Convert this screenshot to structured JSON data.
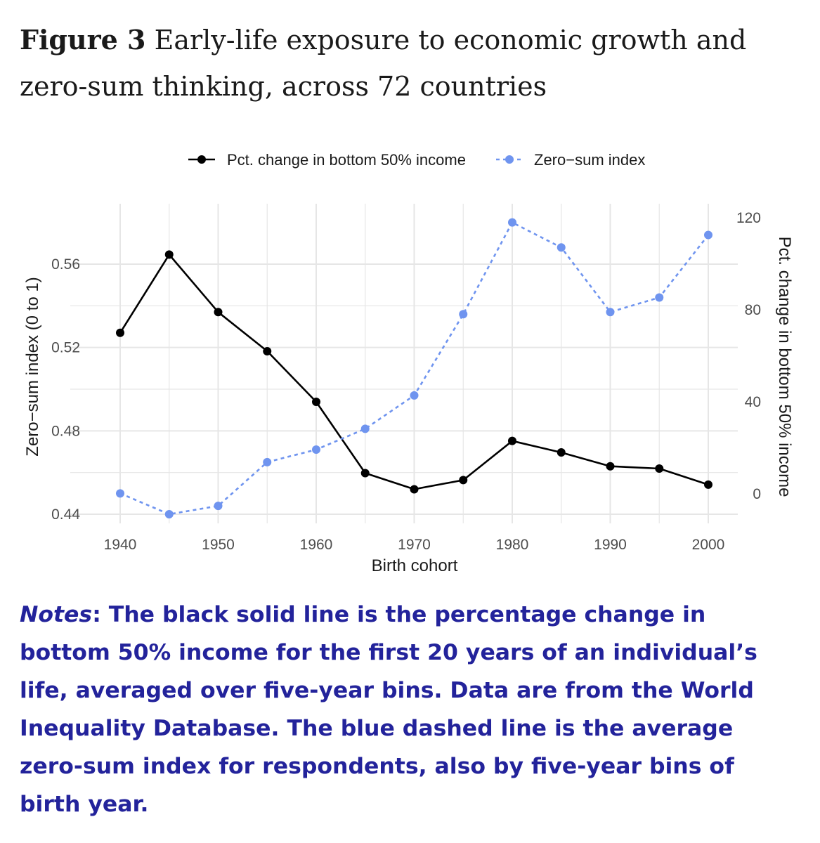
{
  "figure": {
    "label": "Figure 3",
    "title": "Early-life exposure to economic growth and zero-sum thinking, across 72 countries"
  },
  "notes": {
    "lead": "Notes",
    "text": ": The black solid line is the percentage change in bottom 50% income for the first 20 years of an individual’s life, averaged over five-year bins. Data are from the World Inequality Database. The blue dashed line is the average zero-sum index for respondents, also by five-year bins of birth year."
  },
  "colors": {
    "income_line": "#000000",
    "zero_sum_line": "#6f94ef",
    "notes_text": "#23239b",
    "grid": "#e6e6e6"
  },
  "chart_data": {
    "type": "line",
    "xlabel": "Birth cohort",
    "ylabel_left": "Zero−sum index (0 to 1)",
    "ylabel_right": "Pct. change in bottom 50% income",
    "x": [
      1940,
      1945,
      1950,
      1955,
      1960,
      1965,
      1970,
      1975,
      1980,
      1985,
      1990,
      1995,
      2000
    ],
    "xlim": [
      1940,
      2000
    ],
    "x_ticks": [
      1940,
      1950,
      1960,
      1970,
      1980,
      1990,
      2000
    ],
    "ylim_left": [
      0.44,
      0.58
    ],
    "y_ticks_left": [
      0.44,
      0.48,
      0.52,
      0.56
    ],
    "ylim_right": [
      -10,
      120
    ],
    "y_ticks_right": [
      0,
      40,
      80,
      120
    ],
    "grid": true,
    "legend_position": "top",
    "series": [
      {
        "name": "Pct. change in bottom 50% income",
        "axis": "right",
        "style": "solid",
        "color": "#000000",
        "values": [
          70,
          104,
          79,
          62,
          40,
          9,
          2,
          6,
          23,
          18,
          12,
          11,
          4
        ]
      },
      {
        "name": "Zero−sum index",
        "axis": "left",
        "style": "dashed",
        "color": "#6f94ef",
        "values": [
          0.45,
          0.44,
          0.444,
          0.465,
          0.471,
          0.481,
          0.497,
          0.536,
          0.58,
          0.568,
          0.537,
          0.544,
          0.574
        ]
      }
    ]
  }
}
